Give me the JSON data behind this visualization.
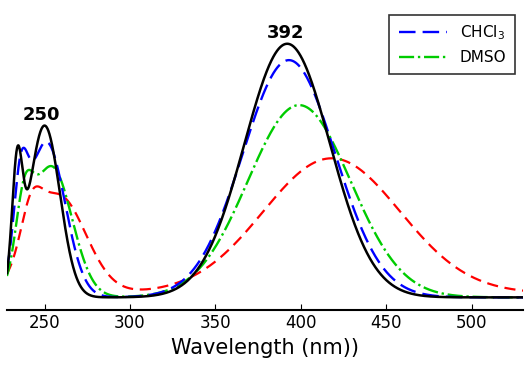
{
  "xlabel": "Wavelength (nm))",
  "xlim": [
    228,
    530
  ],
  "ylim": [
    -0.02,
    0.72
  ],
  "annotation_250": "250",
  "annotation_392": "392",
  "background_color": "#FFFFFF",
  "tick_fontsize": 12,
  "label_fontsize": 15
}
